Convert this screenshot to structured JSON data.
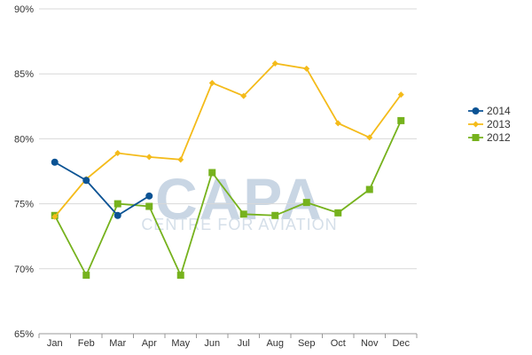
{
  "watermark": {
    "main": "CAPA",
    "sub": "CENTRE FOR AVIATION"
  },
  "chart_data": {
    "type": "line",
    "categories": [
      "Jan",
      "Feb",
      "Mar",
      "Apr",
      "May",
      "Jun",
      "Jul",
      "Aug",
      "Sep",
      "Oct",
      "Nov",
      "Dec"
    ],
    "ylim": [
      65,
      90
    ],
    "yticks": [
      65,
      70,
      75,
      80,
      85,
      90
    ],
    "ytick_labels": [
      "65%",
      "70%",
      "75%",
      "80%",
      "85%",
      "90%"
    ],
    "grid": "horizontal",
    "legend_position": "right",
    "series": [
      {
        "name": "2014",
        "color": "#0b5394",
        "marker": "circle",
        "values": [
          78.2,
          76.8,
          74.1,
          75.6,
          null,
          null,
          null,
          null,
          null,
          null,
          null,
          null
        ]
      },
      {
        "name": "2013",
        "color": "#f4bb1a",
        "marker": "diamond",
        "values": [
          74.0,
          76.9,
          78.9,
          78.6,
          78.4,
          84.3,
          83.3,
          85.8,
          85.4,
          81.2,
          80.1,
          83.4
        ]
      },
      {
        "name": "2012",
        "color": "#76b21d",
        "marker": "square",
        "values": [
          74.1,
          69.5,
          75.0,
          74.8,
          69.5,
          77.4,
          74.2,
          74.1,
          75.1,
          74.3,
          76.1,
          81.4
        ]
      }
    ]
  }
}
